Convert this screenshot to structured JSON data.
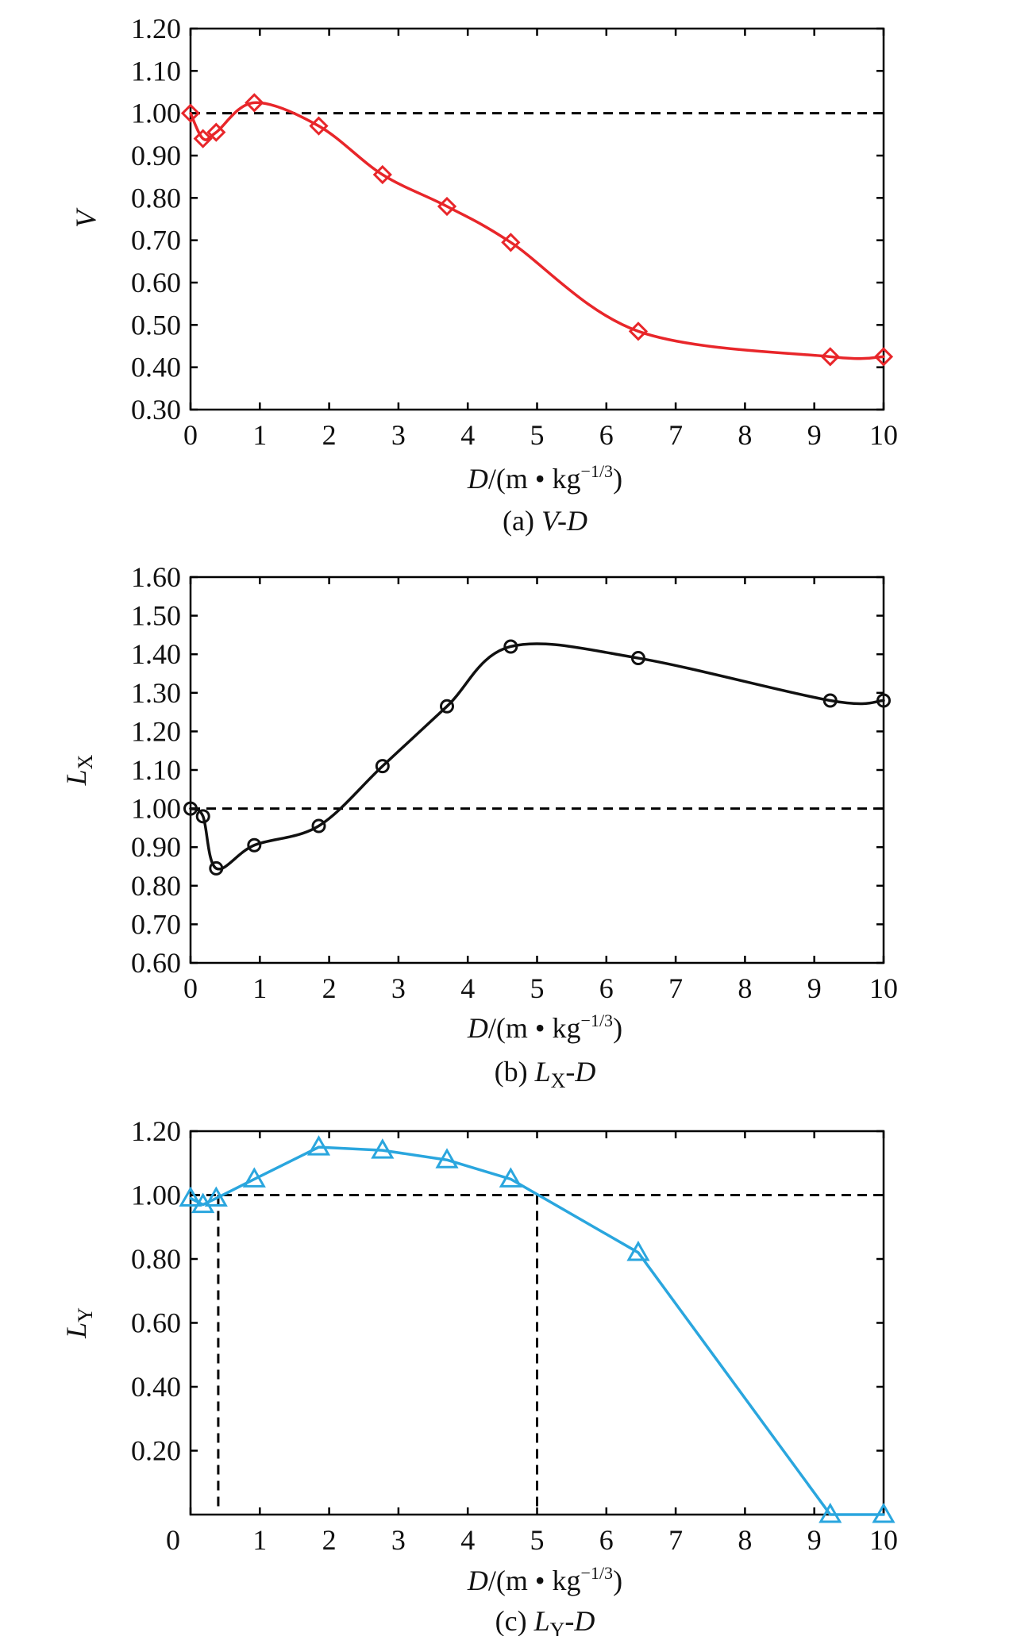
{
  "chart_data": [
    {
      "type": "line",
      "ylabel": "V",
      "xlabel_main": "D",
      "xlabel_unit": "/(m • kg",
      "xlabel_exp": "−1/3",
      "xlabel_close": ")",
      "caption_prefix": "(a) ",
      "caption_main": "V-D",
      "caption_sub": "",
      "caption_suffix": "",
      "xlim": [
        0,
        10
      ],
      "ylim": [
        0.3,
        1.2
      ],
      "xticks": [
        0,
        1,
        2,
        3,
        4,
        5,
        6,
        7,
        8,
        9,
        10
      ],
      "xtick_labels": [
        "0",
        "1",
        "2",
        "3",
        "4",
        "5",
        "6",
        "7",
        "8",
        "9",
        "10"
      ],
      "yticks": [
        0.3,
        0.4,
        0.5,
        0.6,
        0.7,
        0.8,
        0.9,
        1.0,
        1.1,
        1.2
      ],
      "ytick_labels": [
        "0.30",
        "0.40",
        "0.50",
        "0.60",
        "0.70",
        "0.80",
        "0.90",
        "1.00",
        "1.10",
        "1.20"
      ],
      "reference_line": 1.0,
      "color": "#e8262a",
      "marker": "diamond",
      "smooth": true,
      "x": [
        0,
        0.18,
        0.37,
        0.92,
        1.85,
        2.77,
        3.7,
        4.62,
        6.46,
        9.23,
        10
      ],
      "y": [
        1.0,
        0.94,
        0.955,
        1.025,
        0.97,
        0.855,
        0.78,
        0.695,
        0.485,
        0.425,
        0.425
      ]
    },
    {
      "type": "line",
      "ylabel": "L",
      "ylabel_sub": "X",
      "xlabel_main": "D",
      "xlabel_unit": "/(m • kg",
      "xlabel_exp": "−1/3",
      "xlabel_close": ")",
      "caption_prefix": "(b) ",
      "caption_main": "L",
      "caption_sub": "X",
      "caption_suffix": "-D",
      "xlim": [
        0,
        10
      ],
      "ylim": [
        0.6,
        1.6
      ],
      "xticks": [
        0,
        1,
        2,
        3,
        4,
        5,
        6,
        7,
        8,
        9,
        10
      ],
      "xtick_labels": [
        "0",
        "1",
        "2",
        "3",
        "4",
        "5",
        "6",
        "7",
        "8",
        "9",
        "10"
      ],
      "yticks": [
        0.6,
        0.7,
        0.8,
        0.9,
        1.0,
        1.1,
        1.2,
        1.3,
        1.4,
        1.5,
        1.6
      ],
      "ytick_labels": [
        "0.60",
        "0.70",
        "0.80",
        "0.90",
        "1.00",
        "1.10",
        "1.20",
        "1.30",
        "1.40",
        "1.50",
        "1.60"
      ],
      "reference_line": 1.0,
      "color": "#111111",
      "marker": "circle",
      "smooth": true,
      "x": [
        0,
        0.18,
        0.37,
        0.92,
        1.85,
        2.77,
        3.7,
        4.62,
        6.46,
        9.23,
        10
      ],
      "y": [
        1.0,
        0.98,
        0.845,
        0.905,
        0.955,
        1.11,
        1.265,
        1.42,
        1.39,
        1.28,
        1.28
      ]
    },
    {
      "type": "line",
      "ylabel": "L",
      "ylabel_sub": "Y",
      "xlabel_main": "D",
      "xlabel_unit": "/(m • kg",
      "xlabel_exp": "−1/3",
      "xlabel_close": ")",
      "caption_prefix": "(c) ",
      "caption_main": "L",
      "caption_sub": "Y",
      "caption_suffix": "-D",
      "xlim": [
        0,
        10
      ],
      "ylim": [
        0,
        1.2
      ],
      "xticks": [
        0,
        1,
        2,
        3,
        4,
        5,
        6,
        7,
        8,
        9,
        10
      ],
      "xtick_labels": [
        "0",
        "1",
        "2",
        "3",
        "4",
        "5",
        "6",
        "7",
        "8",
        "9",
        "10"
      ],
      "yticks": [
        0.2,
        0.4,
        0.6,
        0.8,
        1.0,
        1.2
      ],
      "ytick_labels": [
        "0.20",
        "0.40",
        "0.60",
        "0.80",
        "1.00",
        "1.20"
      ],
      "reference_line": 1.0,
      "vertical_reference_lines": [
        0.4,
        5.0
      ],
      "color": "#2aa6de",
      "marker": "triangle",
      "smooth": false,
      "x": [
        0,
        0.18,
        0.37,
        0.92,
        1.85,
        2.77,
        3.7,
        4.62,
        6.46,
        9.23,
        10
      ],
      "y": [
        0.99,
        0.97,
        0.99,
        1.05,
        1.15,
        1.14,
        1.11,
        1.05,
        0.82,
        0.0,
        0.0
      ]
    }
  ]
}
